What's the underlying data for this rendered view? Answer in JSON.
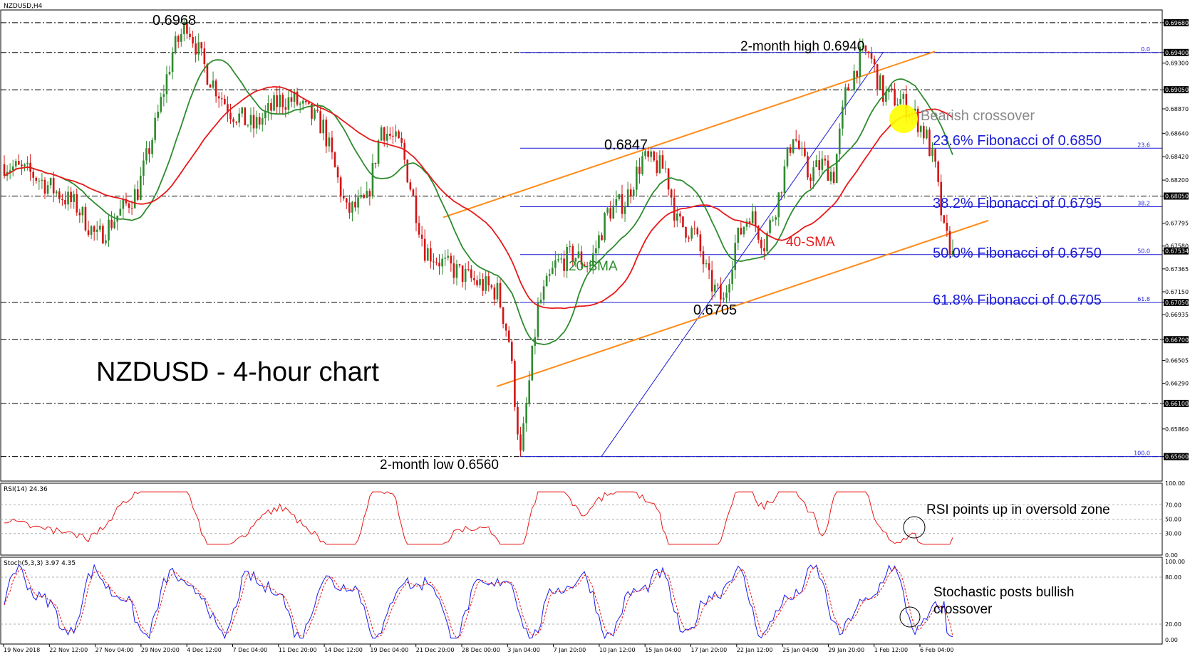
{
  "chart_data": {
    "type": "candlestick",
    "symbol_label": "NZDUSD,H4",
    "title": "NZDUSD - 4-hour chart",
    "price_axis": {
      "range": [
        0.6537,
        0.698
      ],
      "ticks": [
        "0.69680",
        "0.69400",
        "0.69300",
        "0.69050",
        "0.68870",
        "0.68640",
        "0.68420",
        "0.68200",
        "0.68050",
        "0.67795",
        "0.67580",
        "0.67534",
        "0.67365",
        "0.67150",
        "0.67050",
        "0.66935",
        "0.66700",
        "0.66505",
        "0.66290",
        "0.66100",
        "0.65860",
        "0.65600"
      ],
      "highlight_ticks": [
        "0.69680",
        "0.69400",
        "0.69050",
        "0.68050",
        "0.67534",
        "0.67050",
        "0.66700",
        "0.66100",
        "0.65600"
      ]
    },
    "time_axis": [
      "19 Nov 2018",
      "22 Nov 12:00",
      "27 Nov 04:00",
      "29 Nov 20:00",
      "4 Dec 12:00",
      "7 Dec 04:00",
      "11 Dec 20:00",
      "14 Dec 12:00",
      "19 Dec 04:00",
      "21 Dec 20:00",
      "28 Dec 00:00",
      "3 Jan 04:00",
      "7 Jan 20:00",
      "10 Jan 12:00",
      "15 Jan 04:00",
      "17 Jan 20:00",
      "22 Jan 12:00",
      "25 Jan 04:00",
      "29 Jan 20:00",
      "1 Feb 12:00",
      "6 Feb 04:00"
    ],
    "horizontal_levels": [
      0.6968,
      0.694,
      0.6905,
      0.6805,
      0.6705,
      0.667,
      0.661,
      0.656
    ],
    "fibonacci": [
      {
        "pct": "0.0",
        "price": 0.694
      },
      {
        "pct": "23.6",
        "price": 0.685
      },
      {
        "pct": "38.2",
        "price": 0.6795
      },
      {
        "pct": "50.0",
        "price": 0.675
      },
      {
        "pct": "61.8",
        "price": 0.6705
      },
      {
        "pct": "100.0",
        "price": 0.656
      }
    ],
    "key_prices": {
      "high_nov": 0.6968,
      "high_2m": 0.694,
      "peak_jan": 0.6847,
      "trough_jan": 0.6705,
      "low_2m": 0.656,
      "last": 0.67534
    },
    "series": [
      {
        "name": "20-SMA",
        "color": "#2e8b2e"
      },
      {
        "name": "40-SMA",
        "color": "#e8191a"
      }
    ],
    "rsi": {
      "label": "RSI(14) 24.36",
      "levels": [
        "100.00",
        "70.00",
        "50.00",
        "30.00",
        "0.00"
      ],
      "color": "#e8191a"
    },
    "stoch": {
      "label": "Stoch(5,3,3) 3.97 4.35",
      "levels": [
        "100.00",
        "80.00",
        "20.00",
        "0.00"
      ],
      "main_color": "#1a1aee",
      "signal_color": "#e8191a"
    }
  },
  "annotations": {
    "high_nov": "0.6968",
    "high_2m": "2-month high 0.6940",
    "peak_jan": "0.6847",
    "trough_jan": "0.6705",
    "low_2m": "2-month low 0.6560",
    "fib236": "23.6% Fibonacci of 0.6850",
    "fib382": "38.2% Fibonacci of 0.6795",
    "fib500": "50.0% Fibonacci of 0.6750",
    "fib618": "61.8% Fibonacci of 0.6705",
    "bearish": "Bearish crossover",
    "sma20": "20-SMA",
    "sma40": "40-SMA",
    "rsi_note": "RSI points up in oversold zone",
    "stoch_note_1": "Stochastic posts bullish",
    "stoch_note_2": "crossover"
  }
}
